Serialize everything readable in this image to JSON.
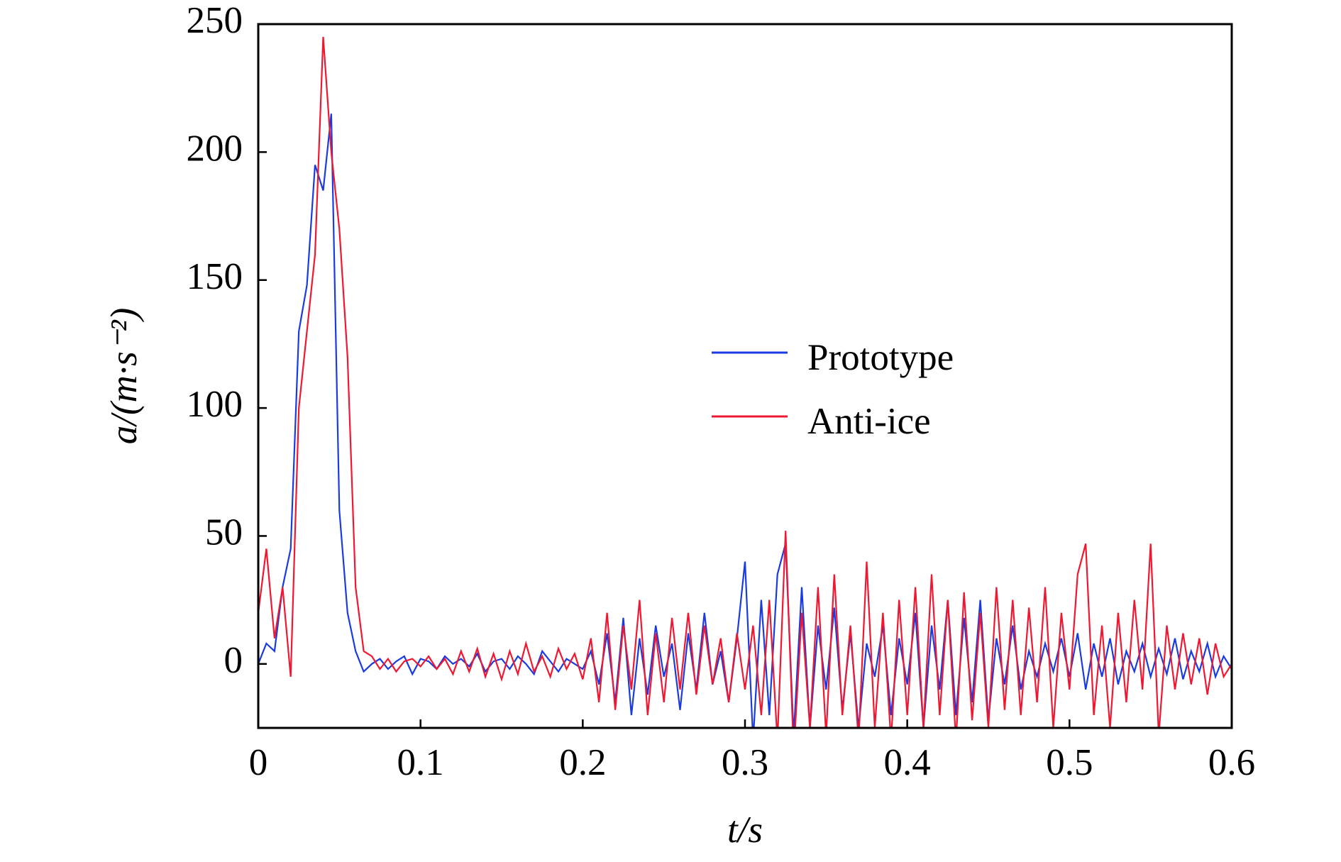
{
  "chart_data": {
    "type": "line",
    "xlabel": "t/s",
    "ylabel": "a/(m·s⁻²)",
    "x": [
      0,
      0.005,
      0.01,
      0.015,
      0.02,
      0.025,
      0.03,
      0.035,
      0.04,
      0.045,
      0.05,
      0.055,
      0.06,
      0.065,
      0.07,
      0.075,
      0.08,
      0.085,
      0.09,
      0.095,
      0.1,
      0.105,
      0.11,
      0.115,
      0.12,
      0.125,
      0.13,
      0.135,
      0.14,
      0.145,
      0.15,
      0.155,
      0.16,
      0.165,
      0.17,
      0.175,
      0.18,
      0.185,
      0.19,
      0.195,
      0.2,
      0.205,
      0.21,
      0.215,
      0.22,
      0.225,
      0.23,
      0.235,
      0.24,
      0.245,
      0.25,
      0.255,
      0.26,
      0.265,
      0.27,
      0.275,
      0.28,
      0.285,
      0.29,
      0.295,
      0.3,
      0.305,
      0.31,
      0.315,
      0.32,
      0.325,
      0.33,
      0.335,
      0.34,
      0.345,
      0.35,
      0.355,
      0.36,
      0.365,
      0.37,
      0.375,
      0.38,
      0.385,
      0.39,
      0.395,
      0.4,
      0.405,
      0.41,
      0.415,
      0.42,
      0.425,
      0.43,
      0.435,
      0.44,
      0.445,
      0.45,
      0.455,
      0.46,
      0.465,
      0.47,
      0.475,
      0.48,
      0.485,
      0.49,
      0.495,
      0.5,
      0.505,
      0.51,
      0.515,
      0.52,
      0.525,
      0.53,
      0.535,
      0.54,
      0.545,
      0.55,
      0.555,
      0.56,
      0.565,
      0.57,
      0.575,
      0.58,
      0.585,
      0.59,
      0.595,
      0.6
    ],
    "series": [
      {
        "name": "Prototype",
        "color": "#1a3be0",
        "values": [
          0,
          8,
          5,
          30,
          45,
          130,
          148,
          195,
          185,
          215,
          60,
          20,
          5,
          -3,
          0,
          2,
          -2,
          1,
          3,
          -4,
          2,
          1,
          -2,
          3,
          0,
          2,
          -1,
          4,
          -3,
          1,
          2,
          -2,
          3,
          0,
          -4,
          5,
          1,
          -3,
          2,
          0,
          -2,
          5,
          -8,
          12,
          -15,
          18,
          -20,
          10,
          -12,
          15,
          -5,
          8,
          -18,
          12,
          -10,
          20,
          -8,
          5,
          -15,
          10,
          40,
          -30,
          25,
          -20,
          35,
          47,
          -28,
          30,
          -25,
          15,
          -10,
          22,
          -18,
          12,
          -25,
          8,
          -5,
          15,
          -20,
          10,
          -8,
          20,
          -25,
          15,
          -10,
          25,
          -20,
          18,
          -15,
          25,
          -22,
          10,
          -8,
          15,
          -10,
          5,
          -5,
          8,
          -3,
          10,
          -5,
          12,
          -10,
          8,
          -5,
          10,
          -8,
          5,
          -3,
          8,
          -5,
          6,
          -4,
          10,
          -6,
          5,
          -3,
          8,
          -5,
          3,
          -2
        ]
      },
      {
        "name": "Anti-ice",
        "color": "#f01830",
        "values": [
          20,
          45,
          10,
          30,
          -5,
          100,
          130,
          160,
          245,
          200,
          170,
          120,
          30,
          5,
          3,
          -2,
          2,
          -3,
          1,
          2,
          -1,
          3,
          -2,
          2,
          -4,
          5,
          -3,
          6,
          -5,
          4,
          -6,
          5,
          -4,
          8,
          -3,
          3,
          -5,
          6,
          -2,
          4,
          -6,
          10,
          -15,
          20,
          -18,
          15,
          -10,
          25,
          -20,
          12,
          -15,
          18,
          -10,
          20,
          -12,
          15,
          -8,
          10,
          -15,
          12,
          -10,
          15,
          -20,
          25,
          -30,
          52,
          -35,
          20,
          -25,
          30,
          -28,
          35,
          -20,
          15,
          -30,
          40,
          -25,
          20,
          -30,
          25,
          -20,
          30,
          -25,
          35,
          -20,
          25,
          -30,
          28,
          -22,
          20,
          -25,
          30,
          -18,
          25,
          -20,
          22,
          -15,
          30,
          -25,
          20,
          -10,
          35,
          47,
          -20,
          15,
          -25,
          20,
          -15,
          25,
          -10,
          47,
          -28,
          15,
          -10,
          12,
          -8,
          10,
          -12,
          8,
          -5,
          0
        ]
      }
    ],
    "xlim": [
      0,
      0.6
    ],
    "xticks": [
      0,
      0.1,
      0.2,
      0.3,
      0.4,
      0.5,
      0.6
    ],
    "ylim": [
      -25,
      250
    ],
    "yticks": [
      0,
      50,
      100,
      150,
      200,
      250
    ]
  }
}
